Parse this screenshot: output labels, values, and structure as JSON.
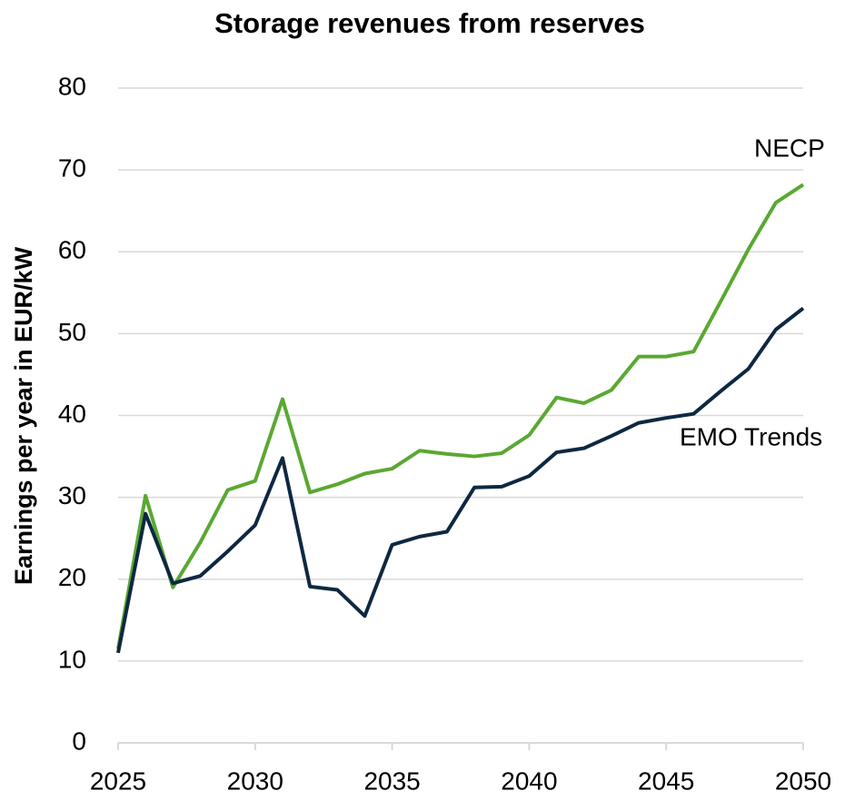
{
  "chart_data": {
    "type": "line",
    "title": "Storage revenues from reserves",
    "y_label": "Earnings per year in EUR/kW",
    "x": [
      2025,
      2026,
      2027,
      2028,
      2029,
      2030,
      2031,
      2032,
      2033,
      2034,
      2035,
      2036,
      2037,
      2038,
      2039,
      2040,
      2041,
      2042,
      2043,
      2044,
      2045,
      2046,
      2047,
      2048,
      2049,
      2050
    ],
    "series": [
      {
        "name": "NECP",
        "color": "#5aa832",
        "values": [
          11.5,
          30.2,
          19,
          24.5,
          30.9,
          32,
          42,
          30.6,
          31.6,
          32.9,
          33.5,
          35.7,
          35.3,
          35,
          35.4,
          37.6,
          42.2,
          41.5,
          43.1,
          47.2,
          47.2,
          47.8,
          54,
          60.3,
          66,
          68.2
        ]
      },
      {
        "name": "EMO Trends",
        "color": "#0e2841",
        "values": [
          11,
          28,
          19.5,
          20.4,
          23.4,
          26.6,
          34.8,
          19.1,
          18.7,
          15.5,
          24.2,
          25.2,
          25.8,
          31.2,
          31.3,
          32.6,
          35.5,
          36,
          37.5,
          39.1,
          39.7,
          40.2,
          43,
          45.7,
          50.5,
          53.1
        ]
      }
    ],
    "xlim": [
      2025,
      2050
    ],
    "xticks": [
      2025,
      2030,
      2035,
      2040,
      2045,
      2050
    ],
    "ylim": [
      0,
      80
    ],
    "yticks": [
      0,
      10,
      20,
      30,
      40,
      50,
      60,
      70,
      80
    ],
    "grid": true
  }
}
